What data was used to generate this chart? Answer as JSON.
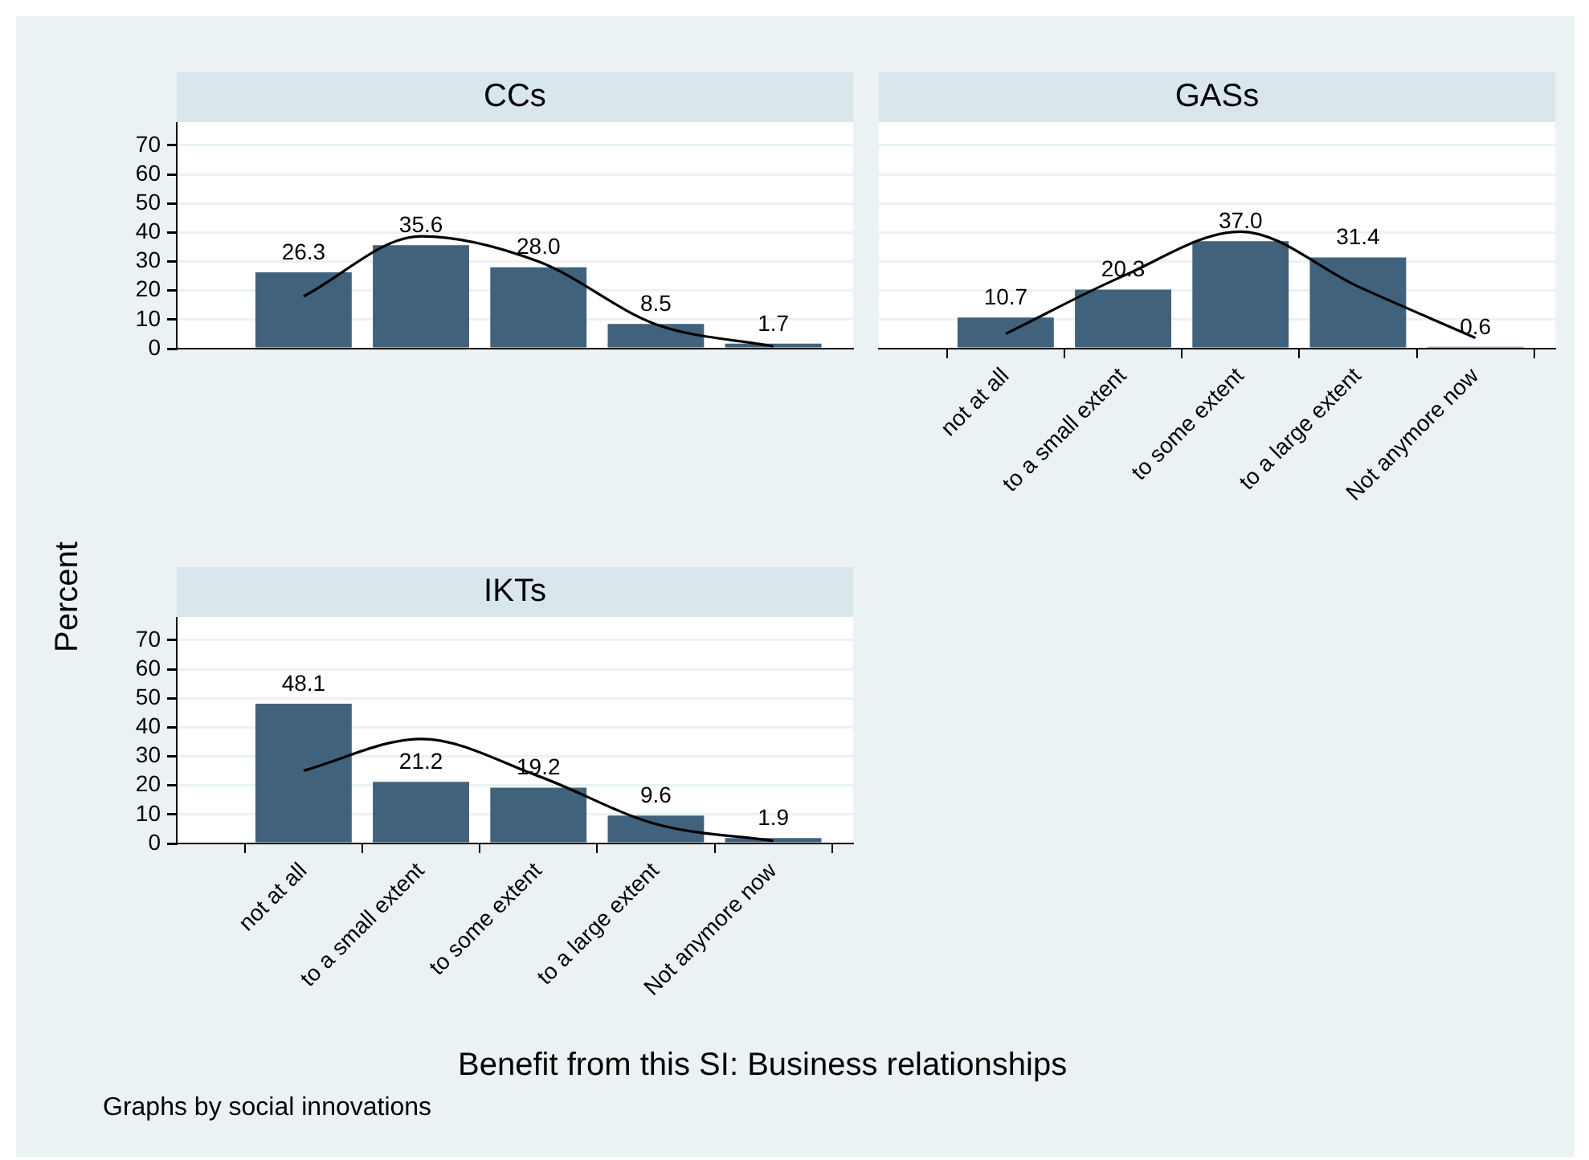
{
  "chart_data": [
    {
      "type": "bar",
      "title": "CCs",
      "categories": [
        null,
        null,
        null,
        null,
        null
      ],
      "ylim": [
        0,
        78
      ],
      "yticks": [
        0,
        10,
        20,
        30,
        40,
        50,
        60,
        70
      ],
      "grid": "y",
      "tick_labels": "y",
      "legend": false,
      "marker": "none",
      "series": [
        {
          "color": "#41627c",
          "values": [
            26.3,
            35.6,
            28.0,
            8.5,
            1.7
          ],
          "value_labels": [
            "26.3",
            "35.6",
            "28.0",
            "8.5",
            "1.7"
          ]
        },
        {
          "type": "line",
          "color": "#000000",
          "values": [
            18.0,
            38.7,
            30.0,
            8.4,
            0.8
          ]
        }
      ]
    },
    {
      "type": "bar",
      "title": "GASs",
      "categories": [
        "not at all",
        "to a small extent",
        "to some extent",
        "to a large extent",
        "Not anymore now"
      ],
      "ylim": [
        0,
        78
      ],
      "yticks": [
        0,
        10,
        20,
        30,
        40,
        50,
        60,
        70
      ],
      "grid": "y",
      "tick_labels": "x",
      "legend": false,
      "marker": "none",
      "series": [
        {
          "color": "#41627c",
          "values": [
            10.7,
            20.3,
            37.0,
            31.4,
            0.6
          ],
          "value_labels": [
            "10.7",
            "20.3",
            "37.0",
            "31.4",
            "0.6"
          ]
        },
        {
          "type": "line",
          "color": "#000000",
          "values": [
            5.1,
            25.0,
            40.3,
            21.4,
            3.7
          ]
        }
      ]
    },
    {
      "type": "bar",
      "title": "IKTs",
      "ylabel": "Percent",
      "xlabel": "Benefit from this SI: Business relationships",
      "annotations": [
        "Graphs by social innovations"
      ],
      "categories": [
        "not at all",
        "to a small extent",
        "to some extent",
        "to a large extent",
        "Not anymore now"
      ],
      "ylim": [
        0,
        78
      ],
      "yticks": [
        0,
        10,
        20,
        30,
        40,
        50,
        60,
        70
      ],
      "grid": "y",
      "legend": false,
      "marker": "none",
      "series": [
        {
          "color": "#41627c",
          "values": [
            48.1,
            21.2,
            19.2,
            9.6,
            1.9
          ],
          "value_labels": [
            "48.1",
            "21.2",
            "19.2",
            "9.6",
            "1.9"
          ]
        },
        {
          "type": "line",
          "color": "#000000",
          "values": [
            25.1,
            36.0,
            23.2,
            6.7,
            0.9
          ]
        }
      ]
    }
  ]
}
